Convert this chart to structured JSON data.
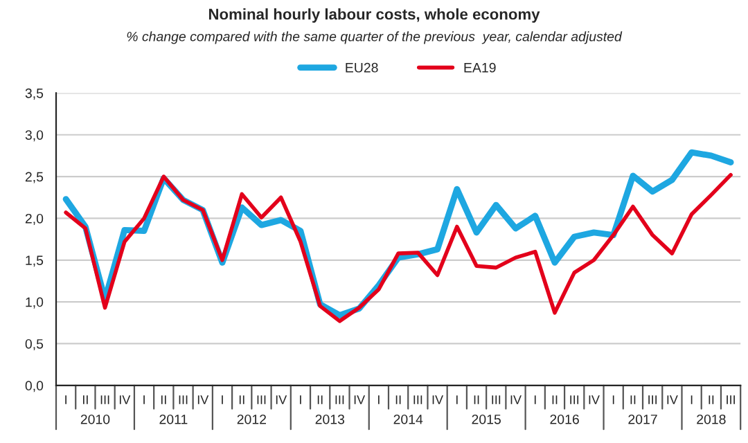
{
  "chart_data": {
    "type": "line",
    "title": "Nominal hourly labour costs, whole economy",
    "subtitle": "% change compared with the same quarter of the previous  year, calendar adjusted",
    "categories": [
      "I",
      "II",
      "III",
      "IV",
      "I",
      "II",
      "III",
      "IV",
      "I",
      "II",
      "III",
      "IV",
      "I",
      "II",
      "III",
      "IV",
      "I",
      "II",
      "III",
      "IV",
      "I",
      "II",
      "III",
      "IV",
      "I",
      "II",
      "III",
      "IV",
      "I",
      "II",
      "III",
      "IV",
      "I",
      "II",
      "III"
    ],
    "series": [
      {
        "name": "EU28",
        "color": "#1ea7e1",
        "values": [
          2.23,
          1.9,
          1.03,
          1.86,
          1.85,
          2.48,
          2.22,
          2.1,
          1.47,
          2.13,
          1.92,
          1.98,
          1.85,
          0.97,
          0.84,
          0.92,
          1.2,
          1.53,
          1.57,
          1.63,
          2.35,
          1.83,
          2.16,
          1.88,
          2.03,
          1.47,
          1.78,
          1.83,
          1.8,
          2.51,
          2.32,
          2.46,
          2.79,
          2.75,
          2.67
        ]
      },
      {
        "name": "EA19",
        "color": "#e3001b",
        "values": [
          2.07,
          1.88,
          0.93,
          1.72,
          2.0,
          2.5,
          2.22,
          2.1,
          1.5,
          2.29,
          2.01,
          2.25,
          1.72,
          0.95,
          0.77,
          0.93,
          1.15,
          1.58,
          1.59,
          1.32,
          1.9,
          1.43,
          1.41,
          1.53,
          1.6,
          0.87,
          1.35,
          1.5,
          1.8,
          2.14,
          1.8,
          1.58,
          2.05,
          2.28,
          2.52
        ]
      }
    ],
    "annotations": [
      "2010",
      "2011",
      "2012",
      "2013",
      "2014",
      "2015",
      "2016",
      "2017",
      "2018"
    ],
    "ylim": [
      0,
      3.5
    ],
    "yticks": [
      {
        "value": 0,
        "label": "0,0"
      },
      {
        "value": 0.5,
        "label": "0,5"
      },
      {
        "value": 1,
        "label": "1,0"
      },
      {
        "value": 1.5,
        "label": "1,5"
      },
      {
        "value": 2,
        "label": "2,0"
      },
      {
        "value": 2.5,
        "label": "2,5"
      },
      {
        "value": 3,
        "label": "3,0"
      },
      {
        "value": 3.5,
        "label": "3,5"
      }
    ],
    "grid": "y",
    "legend": "top",
    "marker": "none",
    "line_style": "solid"
  }
}
